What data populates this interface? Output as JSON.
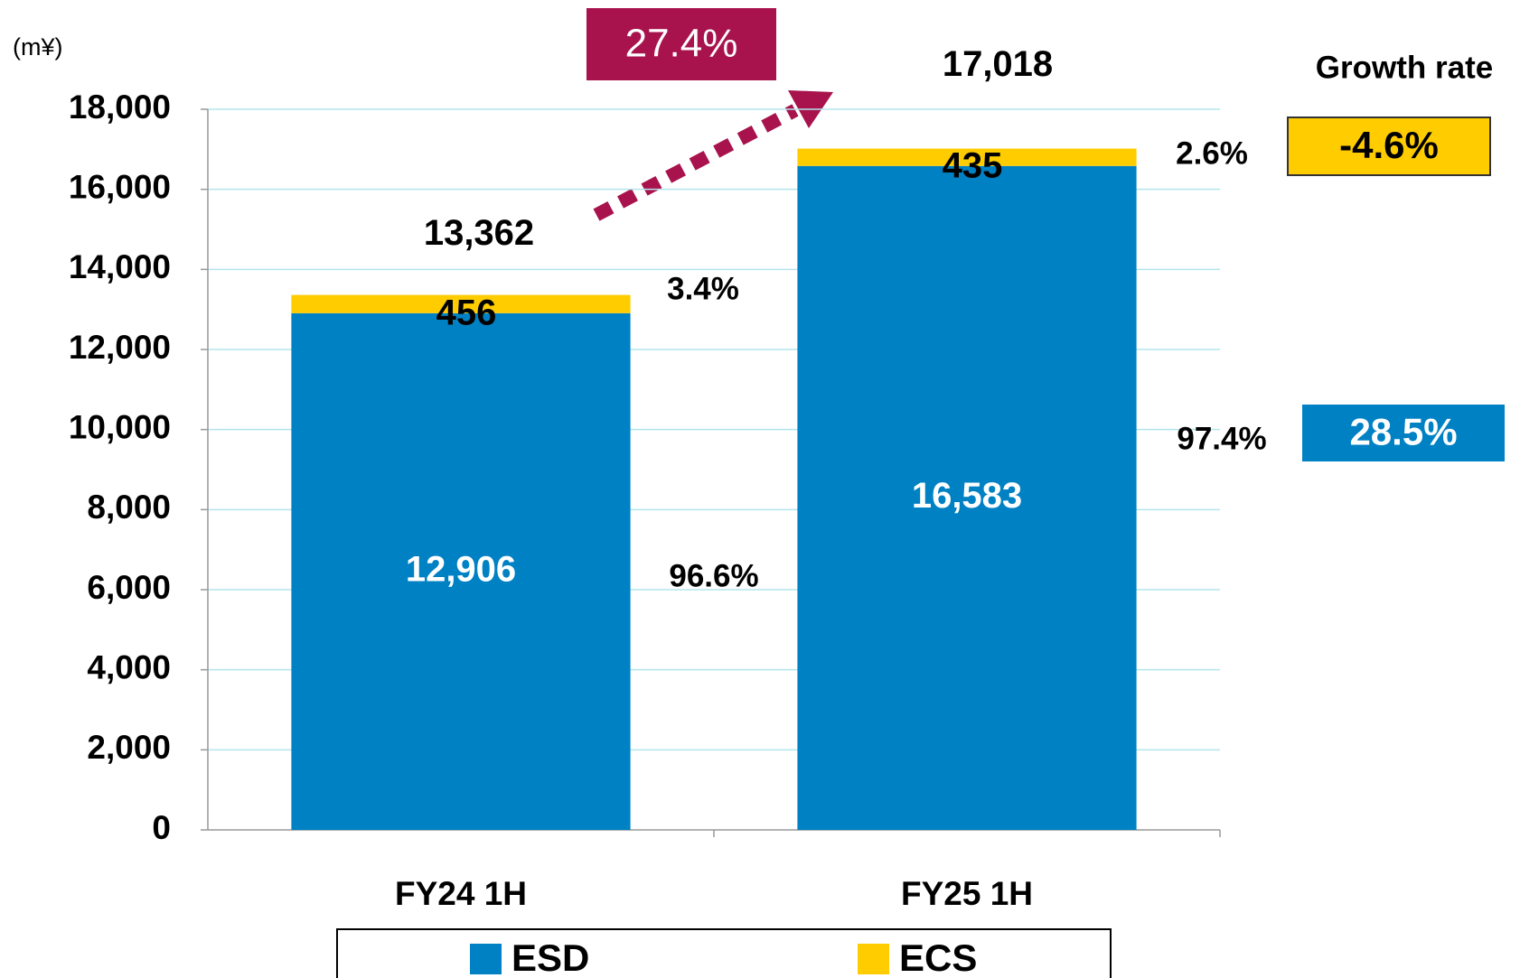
{
  "chart_data": {
    "type": "stacked_bar",
    "unit_label": "(m¥)",
    "categories": [
      "FY24 1H",
      "FY25 1H"
    ],
    "series": [
      {
        "name": "ESD",
        "color": "#0081c4",
        "values": [
          12906,
          16583
        ],
        "value_labels": [
          "12,906",
          "16,583"
        ],
        "share_labels": [
          "96.6%",
          "97.4%"
        ],
        "growth_label": "28.5%"
      },
      {
        "name": "ECS",
        "color": "#ffcc00",
        "values": [
          456,
          435
        ],
        "value_labels": [
          "456",
          "435"
        ],
        "share_labels": [
          "3.4%",
          "2.6%"
        ],
        "growth_label": "-4.6%"
      }
    ],
    "totals": [
      13362,
      17018
    ],
    "total_labels": [
      "13,362",
      "17,018"
    ],
    "total_growth_label": "27.4%",
    "growth_header": "Growth rate",
    "ylim": [
      0,
      18000
    ],
    "yticks": [
      0,
      {
        "value": 2000,
        "label": "2,000"
      },
      {
        "value": 4000,
        "label": "4,000"
      },
      {
        "value": 6000,
        "label": "6,000"
      },
      {
        "value": 8000,
        "label": "8,000"
      },
      {
        "value": 10000,
        "label": "10,000"
      },
      {
        "value": 12000,
        "label": "12,000"
      },
      {
        "value": 14000,
        "label": "14,000"
      },
      {
        "value": 16000,
        "label": "16,000"
      },
      {
        "value": 18000,
        "label": "18,000"
      }
    ],
    "grid": true
  }
}
